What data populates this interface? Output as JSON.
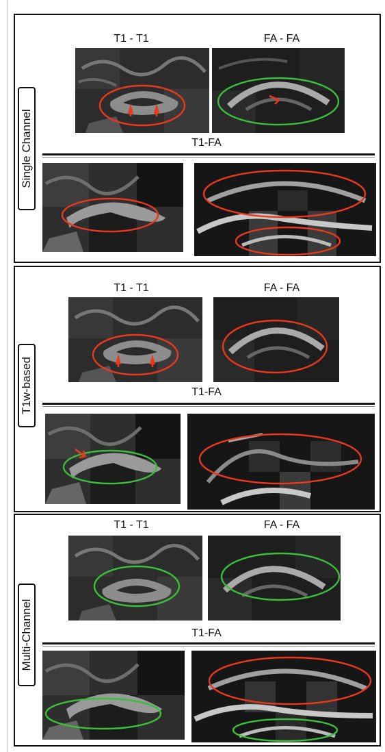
{
  "figure": {
    "colors": {
      "red": "#e8391d",
      "green": "#3bbf3b"
    },
    "panels": [
      {
        "side_label": "Single Channel",
        "top_left_label": "T1 - T1",
        "top_right_label": "FA - FA",
        "middle_label": "T1-FA",
        "ellipses": [
          "red",
          "green",
          "red",
          "red",
          "red"
        ]
      },
      {
        "side_label": "T1w-based",
        "top_left_label": "T1 - T1",
        "top_right_label": "FA - FA",
        "middle_label": "T1-FA",
        "ellipses": [
          "red",
          "red",
          "green",
          "red"
        ]
      },
      {
        "side_label": "Multi-Channel",
        "top_left_label": "T1 - T1",
        "top_right_label": "FA - FA",
        "middle_label": "T1-FA",
        "ellipses": [
          "green",
          "green",
          "green",
          "red",
          "green"
        ]
      }
    ]
  }
}
